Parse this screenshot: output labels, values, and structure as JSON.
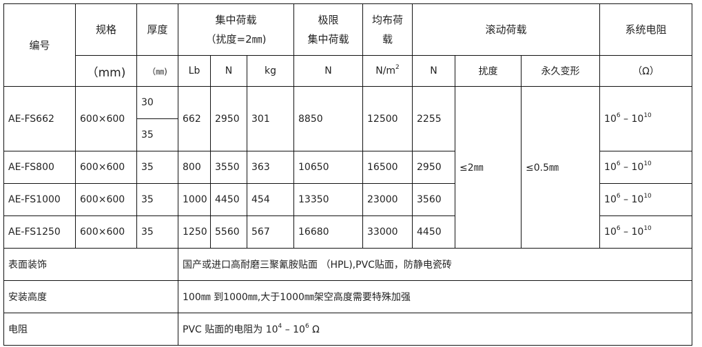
{
  "header": {
    "code": "编号",
    "spec": "规格",
    "spec_unit": "（mm)",
    "thickness": "厚度",
    "thickness_unit": "（㎜)",
    "conc_load_line1": "集中荷载",
    "conc_load_line2": "（扰度=2㎜)",
    "conc_units": [
      "Lb",
      "N",
      "kg"
    ],
    "ult_line1": "极限",
    "ult_line2": "集中荷载",
    "ult_unit": "N",
    "uni_line1": "均布荷",
    "uni_line2": "载",
    "uni_unit_base": "N/㎡",
    "uni_unit": "N/m",
    "uni_unit_exp": "2",
    "rolling": "滚动荷载",
    "rolling_units": [
      "N",
      "扰度",
      "永久变形"
    ],
    "resistance": "系统电阻",
    "resistance_unit": "（Ω）"
  },
  "rows": [
    {
      "code": "AE-FS662",
      "spec": "600×600",
      "thickness": [
        "30",
        "35"
      ],
      "lb": "662",
      "n": "2950",
      "kg": "301",
      "ult": "8850",
      "uni": "12500",
      "roll_n": "2255"
    },
    {
      "code": "AE-FS800",
      "spec": "600×600",
      "thickness": [
        "35"
      ],
      "lb": "800",
      "n": "3550",
      "kg": "363",
      "ult": "10650",
      "uni": "16500",
      "roll_n": "2950"
    },
    {
      "code": "AE-FS1000",
      "spec": "600×600",
      "thickness": [
        "35"
      ],
      "lb": "1000",
      "n": "4450",
      "kg": "454",
      "ult": "13350",
      "uni": "23000",
      "roll_n": "3560"
    },
    {
      "code": "AE-FS1250",
      "spec": "600×600",
      "thickness": [
        "35"
      ],
      "lb": "1250",
      "n": "5560",
      "kg": "567",
      "ult": "16680",
      "uni": "33000",
      "roll_n": "4450"
    }
  ],
  "rolling_deflection": "≤2㎜",
  "rolling_permanent": "≤0.5㎜",
  "resistance_range": {
    "base1": "10",
    "exp1": "6",
    "sep": " – ",
    "base2": "10",
    "exp2": "10"
  },
  "footer": [
    {
      "label": "表面装饰",
      "value": "国产或进口高耐磨三聚氰胺贴面 （HPL),PVC贴面，防静电瓷砖"
    },
    {
      "label": "安装高度",
      "value": "100㎜ 到1000㎜,大于1000㎜架空高度需要特殊加强"
    },
    {
      "label": "电阻",
      "value_pre": "PVC 贴面的电阻为 10",
      "exp1": "4",
      "mid": " – 10",
      "exp2": "6",
      "post": " Ω"
    }
  ]
}
